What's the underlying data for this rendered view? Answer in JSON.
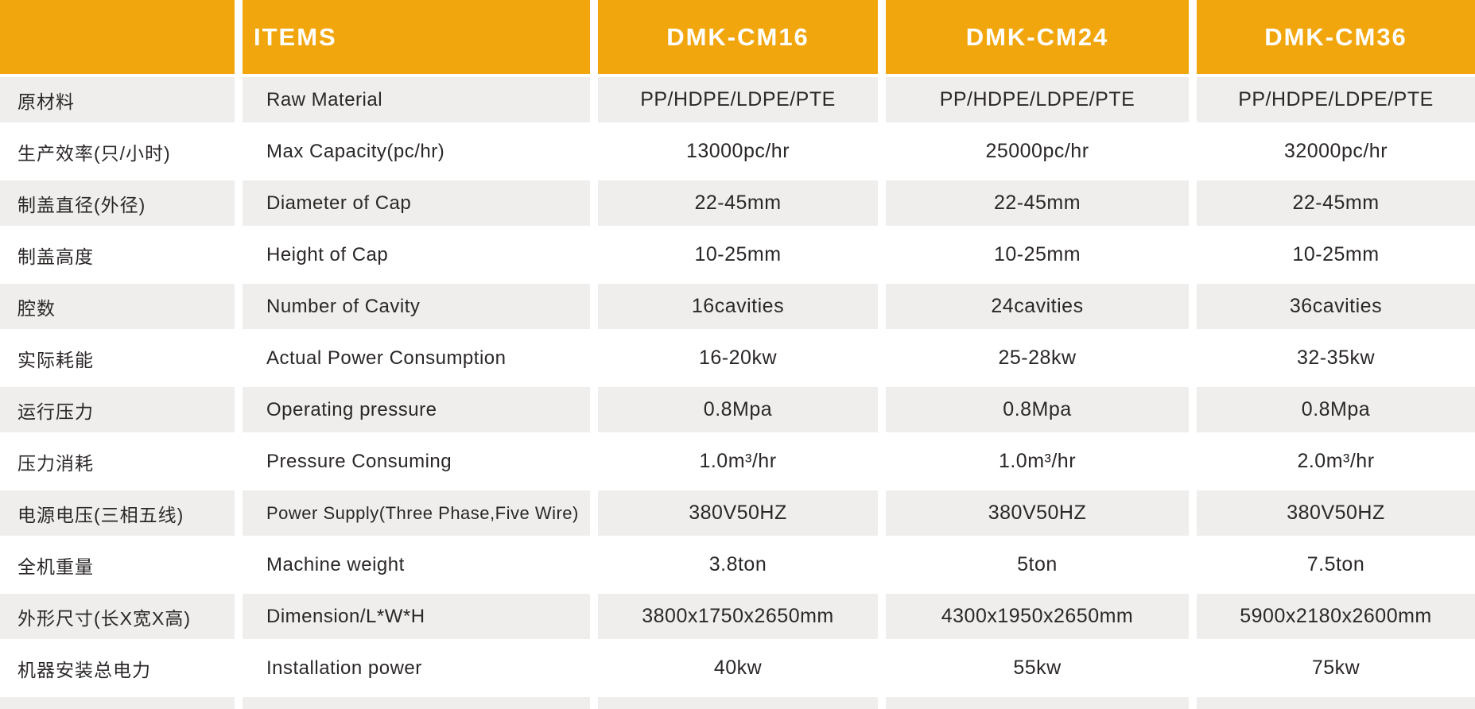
{
  "colors": {
    "header_bg": "#F2A60E",
    "stripe_bg": "#EFEEED",
    "row_bg": "#FFFFFF",
    "header_text": "#FFFFFF",
    "body_text": "#2B2727"
  },
  "table": {
    "items_label": "ITEMS",
    "models": [
      "DMK-CM16",
      "DMK-CM24",
      "DMK-CM36"
    ],
    "rows": [
      {
        "cn": "原材料",
        "en": "Raw Material",
        "values": [
          "PP/HDPE/LDPE/PTE",
          "PP/HDPE/LDPE/PTE",
          "PP/HDPE/LDPE/PTE"
        ]
      },
      {
        "cn": "生产效率(只/小时)",
        "en": "Max Capacity(pc/hr)",
        "values": [
          "13000pc/hr",
          "25000pc/hr",
          "32000pc/hr"
        ]
      },
      {
        "cn": "制盖直径(外径)",
        "en": "Diameter of Cap",
        "values": [
          "22-45mm",
          "22-45mm",
          "22-45mm"
        ]
      },
      {
        "cn": "制盖高度",
        "en": "Height of Cap",
        "values": [
          "10-25mm",
          "10-25mm",
          "10-25mm"
        ]
      },
      {
        "cn": "腔数",
        "en": "Number of Cavity",
        "values": [
          "16cavities",
          "24cavities",
          "36cavities"
        ]
      },
      {
        "cn": "实际耗能",
        "en": "Actual Power Consumption",
        "values": [
          "16-20kw",
          "25-28kw",
          "32-35kw"
        ]
      },
      {
        "cn": "运行压力",
        "en": "Operating pressure",
        "values": [
          "0.8Mpa",
          "0.8Mpa",
          "0.8Mpa"
        ]
      },
      {
        "cn": "压力消耗",
        "en": "Pressure Consuming",
        "values": [
          "1.0m³/hr",
          "1.0m³/hr",
          "2.0m³/hr"
        ]
      },
      {
        "cn": "电源电压(三相五线)",
        "en": "Power Supply(Three Phase,Five Wire)",
        "values": [
          "380V50HZ",
          "380V50HZ",
          "380V50HZ"
        ]
      },
      {
        "cn": "全机重量",
        "en": "Machine weight",
        "values": [
          "3.8ton",
          "5ton",
          "7.5ton"
        ]
      },
      {
        "cn": "外形尺寸(长X宽X高)",
        "en": "Dimension/L*W*H",
        "values": [
          "3800x1750x2650mm",
          "4300x1950x2650mm",
          "5900x2180x2600mm"
        ]
      },
      {
        "cn": "机器安装总电力",
        "en": "Installation power",
        "values": [
          "40kw",
          "55kw",
          "75kw"
        ]
      }
    ]
  }
}
